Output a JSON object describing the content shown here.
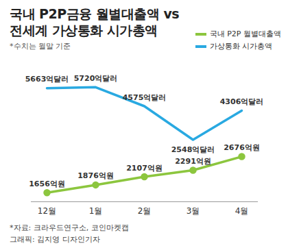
{
  "chart_data": {
    "type": "line",
    "title": "국내 P2P금융 월별대출액 vs 전세계 가상통화 시가총액",
    "subtitle": "*수치는 월말 기준",
    "categories": [
      "12월",
      "1월",
      "2월",
      "3월",
      "4월"
    ],
    "series": [
      {
        "name": "국내 P2P 월별대출액",
        "color": "#8cc63e",
        "marker": "circle",
        "values": [
          1656,
          1876,
          2107,
          2291,
          2676
        ],
        "value_labels": [
          "1656억원",
          "1876억원",
          "2107억원",
          "2291억원",
          "2676억원"
        ]
      },
      {
        "name": "가상통화 시가총액",
        "color": "#29a9e1",
        "marker": "none",
        "axis": "y2",
        "values": [
          5663,
          5720,
          4575,
          2548,
          4306
        ],
        "value_labels": [
          "5663억달러",
          "5720억달러",
          "4575억달러",
          "2548억달러",
          "4306억달러"
        ]
      }
    ],
    "ylim": [
      1400,
      5000
    ],
    "y2lim": [
      -1200,
      6500
    ],
    "data_labels": true,
    "tick_labels": "x",
    "grid": false,
    "legend": "top-right",
    "notes": [
      "*자료: 크라우드연구소, 코인마켓캡",
      "그래픽: 김지영 디자인기자"
    ]
  }
}
